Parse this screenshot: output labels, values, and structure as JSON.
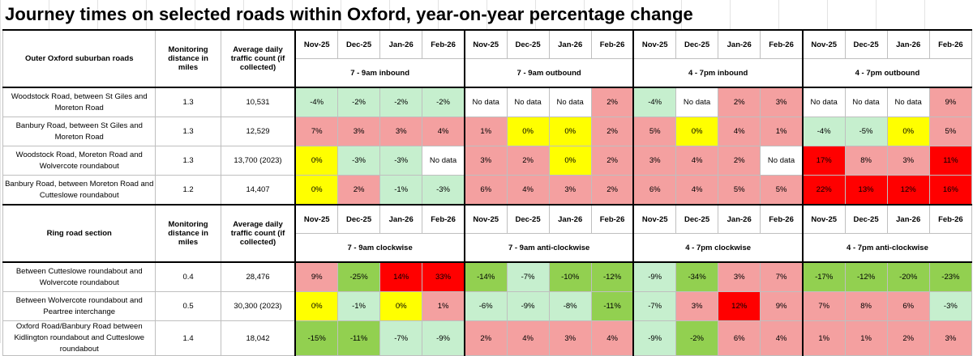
{
  "title": "Journey times on selected roads within Oxford, year-on-year percentage change",
  "months": [
    "Nov-25",
    "Dec-25",
    "Jan-26",
    "Feb-26"
  ],
  "colors": {
    "ltgreen": "#c6efce",
    "green": "#92d050",
    "pink": "#f4a0a0",
    "yellow": "#ffff00",
    "red": "#ff0000"
  },
  "sections": [
    {
      "heading": "Outer Oxford suburban roads",
      "distance_header": "Monitoring distance in miles",
      "traffic_header": "Average daily traffic count (if collected)",
      "periods": [
        "7 - 9am inbound",
        "7 - 9am outbound",
        "4 - 7pm inbound",
        "4 - 7pm outbound"
      ],
      "rows": [
        {
          "road": "Woodstock Road, between St Giles and Moreton Road",
          "distance": "1.3",
          "traffic": "10,531",
          "values": [
            "-4%",
            "-2%",
            "-2%",
            "-2%",
            "No data",
            "No data",
            "No data",
            "2%",
            "-4%",
            "No data",
            "2%",
            "3%",
            "No data",
            "No data",
            "No data",
            "9%"
          ],
          "colors": [
            "ltgreen",
            "ltgreen",
            "ltgreen",
            "ltgreen",
            "white",
            "white",
            "white",
            "pink",
            "ltgreen",
            "white",
            "pink",
            "pink",
            "white",
            "white",
            "white",
            "pink"
          ]
        },
        {
          "road": "Banbury Road, between St Giles and Moreton Road",
          "distance": "1.3",
          "traffic": "12,529",
          "values": [
            "7%",
            "3%",
            "3%",
            "4%",
            "1%",
            "0%",
            "0%",
            "2%",
            "5%",
            "0%",
            "4%",
            "1%",
            "-4%",
            "-5%",
            "0%",
            "5%"
          ],
          "colors": [
            "pink",
            "pink",
            "pink",
            "pink",
            "pink",
            "yellow",
            "yellow",
            "pink",
            "pink",
            "yellow",
            "pink",
            "pink",
            "ltgreen",
            "ltgreen",
            "yellow",
            "pink"
          ]
        },
        {
          "road": "Woodstock Road, Moreton Road and Wolvercote roundabout",
          "distance": "1.3",
          "traffic": "13,700 (2023)",
          "values": [
            "0%",
            "-3%",
            "-3%",
            "No data",
            "3%",
            "2%",
            "0%",
            "2%",
            "3%",
            "4%",
            "2%",
            "No data",
            "17%",
            "8%",
            "3%",
            "11%"
          ],
          "colors": [
            "yellow",
            "ltgreen",
            "ltgreen",
            "white",
            "pink",
            "pink",
            "yellow",
            "pink",
            "pink",
            "pink",
            "pink",
            "white",
            "red",
            "pink",
            "pink",
            "red"
          ]
        },
        {
          "road": "Banbury Road, between Moreton Road and Cutteslowe roundabout",
          "distance": "1.2",
          "traffic": "14,407",
          "values": [
            "0%",
            "2%",
            "-1%",
            "-3%",
            "6%",
            "4%",
            "3%",
            "2%",
            "6%",
            "4%",
            "5%",
            "5%",
            "22%",
            "13%",
            "12%",
            "16%"
          ],
          "colors": [
            "yellow",
            "pink",
            "ltgreen",
            "ltgreen",
            "pink",
            "pink",
            "pink",
            "pink",
            "pink",
            "pink",
            "pink",
            "pink",
            "red",
            "red",
            "red",
            "red"
          ]
        }
      ]
    },
    {
      "heading": "Ring road section",
      "distance_header": "Monitoring distance in miles",
      "traffic_header": "Average daily traffic count (if collected)",
      "periods": [
        "7 - 9am clockwise",
        "7 - 9am anti-clockwise",
        "4 - 7pm clockwise",
        "4 - 7pm anti-clockwise"
      ],
      "rows": [
        {
          "road": "Between Cutteslowe roundabout and Wolvercote roundabout",
          "distance": "0.4",
          "traffic": "28,476",
          "values": [
            "9%",
            "-25%",
            "14%",
            "33%",
            "-14%",
            "-7%",
            "-10%",
            "-12%",
            "-9%",
            "-34%",
            "3%",
            "7%",
            "-17%",
            "-12%",
            "-20%",
            "-23%"
          ],
          "colors": [
            "pink",
            "green",
            "red",
            "red",
            "green",
            "ltgreen",
            "green",
            "green",
            "ltgreen",
            "green",
            "pink",
            "pink",
            "green",
            "green",
            "green",
            "green"
          ]
        },
        {
          "road": "Between Wolvercote roundabout and Peartree interchange",
          "distance": "0.5",
          "traffic": "30,300 (2023)",
          "values": [
            "0%",
            "-1%",
            "0%",
            "1%",
            "-6%",
            "-9%",
            "-8%",
            "-11%",
            "-7%",
            "3%",
            "12%",
            "9%",
            "7%",
            "8%",
            "6%",
            "-3%"
          ],
          "colors": [
            "yellow",
            "ltgreen",
            "yellow",
            "pink",
            "ltgreen",
            "ltgreen",
            "ltgreen",
            "green",
            "ltgreen",
            "pink",
            "red",
            "pink",
            "pink",
            "pink",
            "pink",
            "ltgreen"
          ]
        },
        {
          "road": "Oxford Road/Banbury Road between Kidlington roundabout and Cutteslowe roundabout",
          "distance": "1.4",
          "traffic": "18,042",
          "values": [
            "-15%",
            "-11%",
            "-7%",
            "-9%",
            "2%",
            "4%",
            "3%",
            "4%",
            "-9%",
            "-2%",
            "6%",
            "4%",
            "1%",
            "1%",
            "2%",
            "3%"
          ],
          "colors": [
            "green",
            "green",
            "ltgreen",
            "ltgreen",
            "pink",
            "pink",
            "pink",
            "pink",
            "ltgreen",
            "green",
            "pink",
            "pink",
            "pink",
            "pink",
            "pink",
            "pink"
          ]
        }
      ]
    }
  ]
}
